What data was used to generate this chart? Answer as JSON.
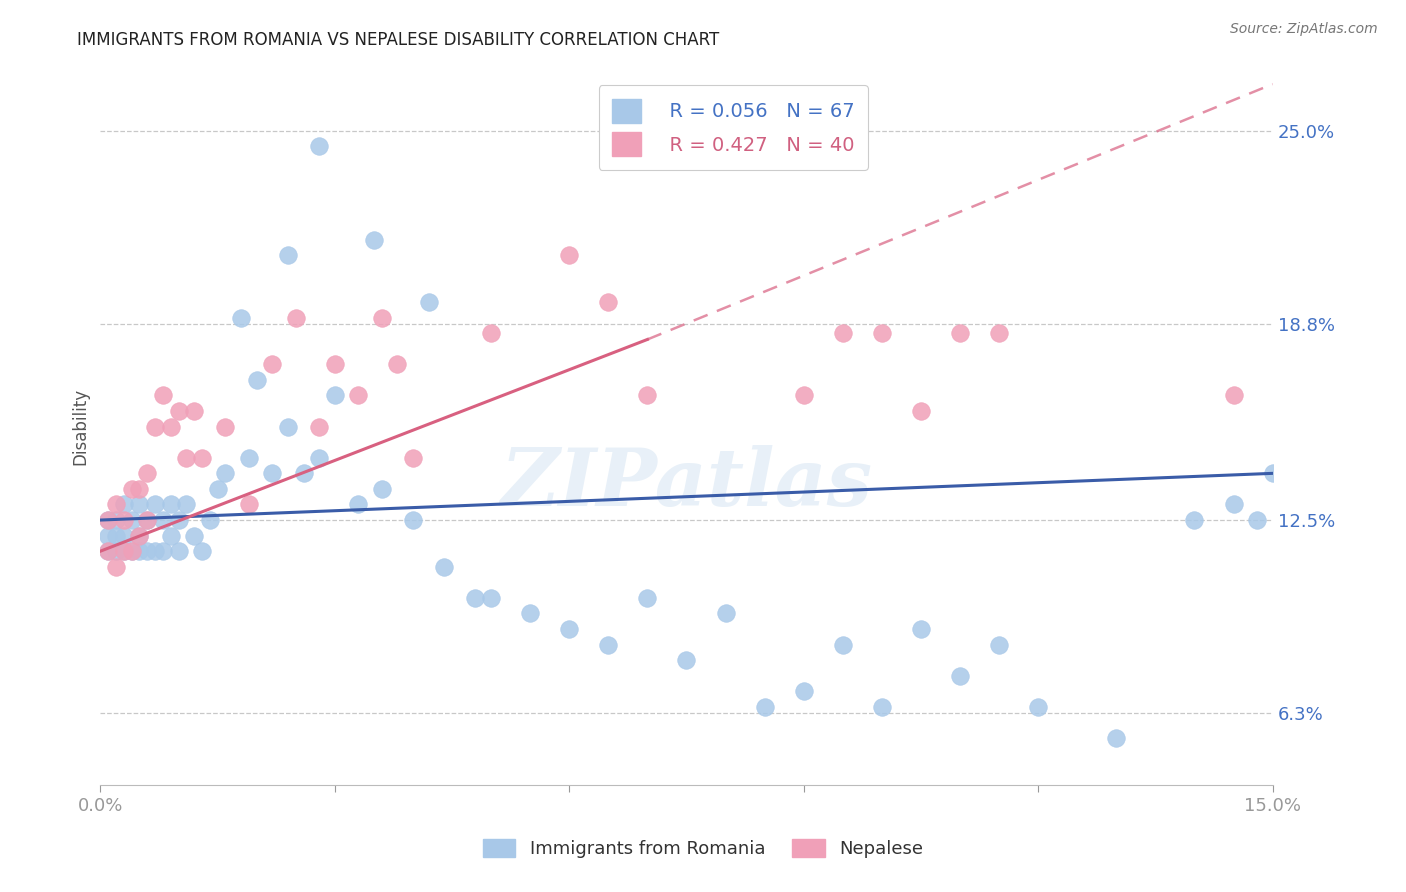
{
  "title": "IMMIGRANTS FROM ROMANIA VS NEPALESE DISABILITY CORRELATION CHART",
  "source": "Source: ZipAtlas.com",
  "ylabel": "Disability",
  "xlim": [
    0.0,
    0.15
  ],
  "ylim": [
    0.04,
    0.27
  ],
  "xticks": [
    0.0,
    0.03,
    0.06,
    0.09,
    0.12,
    0.15
  ],
  "xtick_labels": [
    "0.0%",
    "",
    "",
    "",
    "",
    "15.0%"
  ],
  "ytick_vals": [
    0.063,
    0.125,
    0.188,
    0.25
  ],
  "ytick_labels": [
    "6.3%",
    "12.5%",
    "18.8%",
    "25.0%"
  ],
  "blue_color": "#a8c8e8",
  "pink_color": "#f0a0b8",
  "blue_line_color": "#3a5ca8",
  "pink_line_color": "#d86080",
  "watermark": "ZIPatlas",
  "background_color": "#ffffff",
  "grid_color": "#c8c8c8",
  "blue_x": [
    0.001,
    0.001,
    0.001,
    0.002,
    0.002,
    0.002,
    0.003,
    0.003,
    0.003,
    0.004,
    0.004,
    0.005,
    0.005,
    0.005,
    0.006,
    0.006,
    0.007,
    0.007,
    0.008,
    0.008,
    0.009,
    0.009,
    0.01,
    0.01,
    0.011,
    0.012,
    0.013,
    0.014,
    0.015,
    0.016,
    0.018,
    0.019,
    0.02,
    0.022,
    0.024,
    0.026,
    0.028,
    0.03,
    0.033,
    0.036,
    0.04,
    0.044,
    0.05,
    0.055,
    0.06,
    0.065,
    0.07,
    0.075,
    0.08,
    0.085,
    0.09,
    0.095,
    0.1,
    0.105,
    0.11,
    0.115,
    0.12,
    0.13,
    0.14,
    0.145,
    0.148,
    0.15,
    0.024,
    0.028,
    0.035,
    0.042,
    0.048
  ],
  "blue_y": [
    0.125,
    0.12,
    0.115,
    0.125,
    0.12,
    0.115,
    0.13,
    0.12,
    0.115,
    0.125,
    0.115,
    0.13,
    0.12,
    0.115,
    0.125,
    0.115,
    0.13,
    0.115,
    0.125,
    0.115,
    0.13,
    0.12,
    0.125,
    0.115,
    0.13,
    0.12,
    0.115,
    0.125,
    0.135,
    0.14,
    0.19,
    0.145,
    0.17,
    0.14,
    0.155,
    0.14,
    0.145,
    0.165,
    0.13,
    0.135,
    0.125,
    0.11,
    0.1,
    0.095,
    0.09,
    0.085,
    0.1,
    0.08,
    0.095,
    0.065,
    0.07,
    0.085,
    0.065,
    0.09,
    0.075,
    0.085,
    0.065,
    0.055,
    0.125,
    0.13,
    0.125,
    0.14,
    0.21,
    0.245,
    0.215,
    0.195,
    0.1
  ],
  "pink_x": [
    0.001,
    0.001,
    0.002,
    0.002,
    0.003,
    0.003,
    0.004,
    0.004,
    0.005,
    0.005,
    0.006,
    0.006,
    0.007,
    0.008,
    0.009,
    0.01,
    0.011,
    0.012,
    0.013,
    0.016,
    0.019,
    0.022,
    0.025,
    0.028,
    0.03,
    0.033,
    0.036,
    0.038,
    0.04,
    0.05,
    0.06,
    0.065,
    0.07,
    0.09,
    0.095,
    0.1,
    0.105,
    0.11,
    0.115,
    0.145
  ],
  "pink_y": [
    0.125,
    0.115,
    0.13,
    0.11,
    0.125,
    0.115,
    0.135,
    0.115,
    0.135,
    0.12,
    0.14,
    0.125,
    0.155,
    0.165,
    0.155,
    0.16,
    0.145,
    0.16,
    0.145,
    0.155,
    0.13,
    0.175,
    0.19,
    0.155,
    0.175,
    0.165,
    0.19,
    0.175,
    0.145,
    0.185,
    0.21,
    0.195,
    0.165,
    0.165,
    0.185,
    0.185,
    0.16,
    0.185,
    0.185,
    0.165
  ],
  "blue_trend": [
    0.0,
    0.15,
    0.125,
    0.14
  ],
  "pink_trend_solid": [
    0.0,
    0.07,
    0.115,
    0.183
  ],
  "pink_trend_dashed": [
    0.07,
    0.15,
    0.183,
    0.265
  ]
}
